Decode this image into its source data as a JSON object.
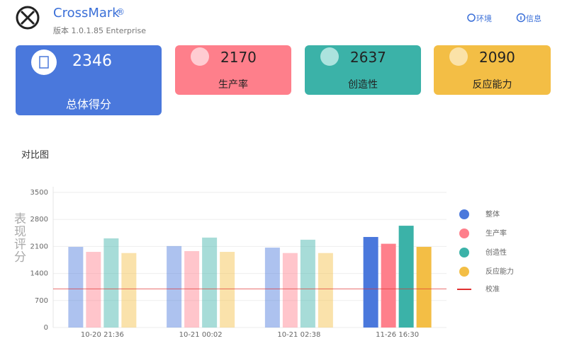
{
  "header": {
    "title": "CrossMark",
    "mark": "®",
    "version": "版本 1.0.1.85 Enterprise",
    "links": [
      "环境",
      "信息"
    ]
  },
  "cards": [
    {
      "value": 2346,
      "label": "总体得分"
    },
    {
      "value": 2170,
      "label": "生产率"
    },
    {
      "value": 2637,
      "label": "创造性"
    },
    {
      "value": 2090,
      "label": "反应能力"
    }
  ],
  "section_title": "对比图",
  "chart_data": {
    "type": "bar",
    "ylabel": "表现评分",
    "categories": [
      "10-20 21:36",
      "10-21 00:02",
      "10-21 02:38",
      "11-26 16:30"
    ],
    "series": [
      {
        "name": "整体",
        "color": "#4a78dc",
        "values": [
          2090,
          2110,
          2070,
          2346
        ]
      },
      {
        "name": "生产率",
        "color": "#fe7f8b",
        "values": [
          1960,
          1980,
          1930,
          2170
        ]
      },
      {
        "name": "创造性",
        "color": "#3bb2a8",
        "values": [
          2310,
          2330,
          2275,
          2637
        ]
      },
      {
        "name": "反应能力",
        "color": "#f3be45",
        "values": [
          1930,
          1960,
          1930,
          2090
        ]
      }
    ],
    "reference_line": {
      "name": "校准",
      "value": 1000,
      "color": "#e03030"
    },
    "ylim": [
      0,
      3500
    ],
    "yticks": [
      0,
      700,
      1400,
      2100,
      2800,
      3500
    ],
    "grid": true
  }
}
